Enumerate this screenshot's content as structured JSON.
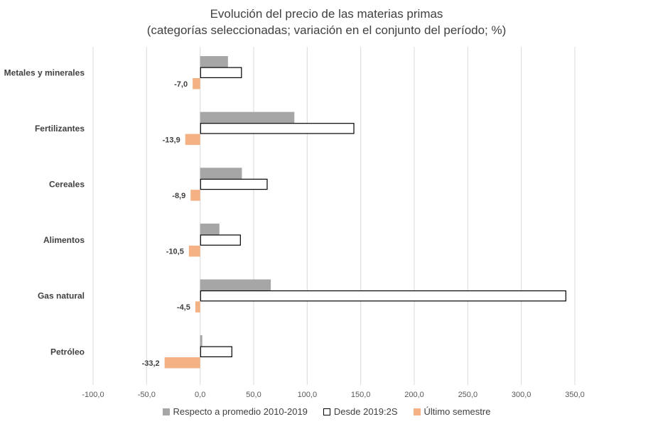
{
  "chart_data": {
    "type": "bar",
    "orientation": "horizontal",
    "title": "Evolución del precio de las materias primas",
    "subtitle": "(categorías seleccionadas; variación en el conjunto del período; %)",
    "categories": [
      "Metales y minerales",
      "Fertilizantes",
      "Cereales",
      "Alimentos",
      "Gas natural",
      "Petróleo"
    ],
    "series": [
      {
        "name": "Respecto a promedio 2010-2019",
        "values": [
          26,
          88,
          39,
          18,
          66,
          2
        ],
        "color": "#a6a6a6",
        "style": "filled"
      },
      {
        "name": "Desde 2019:2S",
        "values": [
          39,
          144,
          63,
          38,
          342,
          30
        ],
        "color": "#000000",
        "style": "outline"
      },
      {
        "name": "Último semestre",
        "values": [
          -7.0,
          -13.9,
          -8.9,
          -10.5,
          -4.5,
          -33.2
        ],
        "color": "#f4b183",
        "style": "filled",
        "data_labels": [
          "-7,0",
          "-13,9",
          "-8,9",
          "-10,5",
          "-4,5",
          "-33,2"
        ]
      }
    ],
    "xlim": [
      -100,
      350
    ],
    "x_ticks": [
      -100,
      -50,
      0,
      50,
      100,
      150,
      200,
      250,
      300,
      350
    ],
    "x_tick_labels": [
      "-100,0",
      "-50,0",
      "0,0",
      "50,0",
      "100,0",
      "150,0",
      "200,0",
      "250,0",
      "300,0",
      "350,0"
    ],
    "grid": "vertical",
    "legend_position": "bottom"
  }
}
